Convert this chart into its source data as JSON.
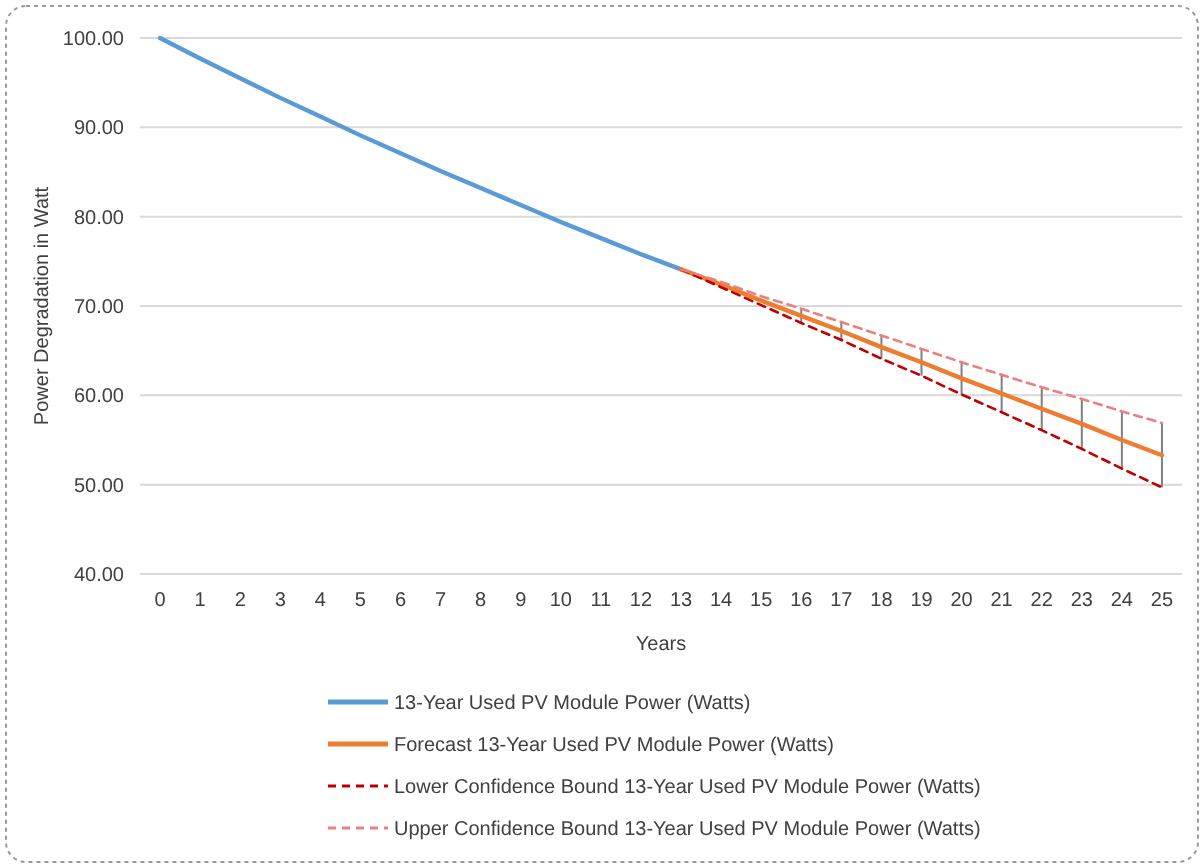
{
  "chart_data": {
    "type": "line",
    "xlabel": "Years",
    "ylabel": "Power Degradation in Watt",
    "xlim": [
      -0.5,
      25.5
    ],
    "xticks": [
      0,
      1,
      2,
      3,
      4,
      5,
      6,
      7,
      8,
      9,
      10,
      11,
      12,
      13,
      14,
      15,
      16,
      17,
      18,
      19,
      20,
      21,
      22,
      23,
      24,
      25
    ],
    "ylim": [
      40,
      100
    ],
    "yticks": [
      {
        "value": 40,
        "label": "40.00"
      },
      {
        "value": 50,
        "label": "50.00"
      },
      {
        "value": 60,
        "label": "60.00"
      },
      {
        "value": 70,
        "label": "70.00"
      },
      {
        "value": 80,
        "label": "80.00"
      },
      {
        "value": 90,
        "label": "90.00"
      },
      {
        "value": 100,
        "label": "100.00"
      }
    ],
    "grid": "y",
    "legend": "bottom",
    "series": [
      {
        "name": "13-Year Used PV Module Power (Watts)",
        "color": "#5b9bd5",
        "line_style": "solid",
        "x": [
          0,
          1,
          2,
          3,
          4,
          5,
          6,
          7,
          8,
          9,
          10,
          11,
          12,
          13
        ],
        "values": [
          100,
          97.7,
          95.5,
          93.3,
          91.2,
          89.1,
          87.1,
          85.1,
          83.2,
          81.3,
          79.4,
          77.6,
          75.8,
          74.1
        ]
      },
      {
        "name": "Forecast 13-Year Used PV Module Power (Watts)",
        "color": "#ed7d31",
        "line_style": "solid",
        "x": [
          13,
          14,
          15,
          16,
          17,
          18,
          19,
          20,
          21,
          22,
          23,
          24,
          25
        ],
        "values": [
          74.1,
          72.4,
          70.6,
          68.9,
          67.2,
          65.4,
          63.7,
          61.9,
          60.2,
          58.5,
          56.8,
          55.0,
          53.3
        ],
        "errors": [
          null,
          null,
          null,
          [
            68.1,
            69.7
          ],
          [
            66.2,
            68.2
          ],
          [
            64.1,
            66.7
          ],
          [
            62.2,
            65.2
          ],
          [
            60.1,
            63.7
          ],
          [
            58.1,
            62.3
          ],
          [
            56.1,
            60.9
          ],
          [
            54.0,
            59.6
          ],
          [
            51.8,
            58.2
          ],
          [
            49.7,
            56.9
          ]
        ]
      },
      {
        "name": "Lower Confidence Bound 13-Year Used PV Module Power (Watts)",
        "color": "#c00000",
        "line_style": "dashed",
        "x": [
          13,
          14,
          15,
          16,
          17,
          18,
          19,
          20,
          21,
          22,
          23,
          24,
          25
        ],
        "values": [
          74.1,
          72.1,
          70.1,
          68.1,
          66.2,
          64.1,
          62.2,
          60.1,
          58.1,
          56.1,
          54.0,
          51.8,
          49.7
        ]
      },
      {
        "name": "Upper Confidence Bound 13-Year Used PV Module Power (Watts)",
        "color": "#e88080",
        "line_style": "dashed",
        "x": [
          13,
          14,
          15,
          16,
          17,
          18,
          19,
          20,
          21,
          22,
          23,
          24,
          25
        ],
        "values": [
          74.1,
          72.7,
          71.1,
          69.7,
          68.2,
          66.7,
          65.2,
          63.7,
          62.3,
          60.9,
          59.6,
          58.2,
          56.9
        ]
      }
    ]
  }
}
